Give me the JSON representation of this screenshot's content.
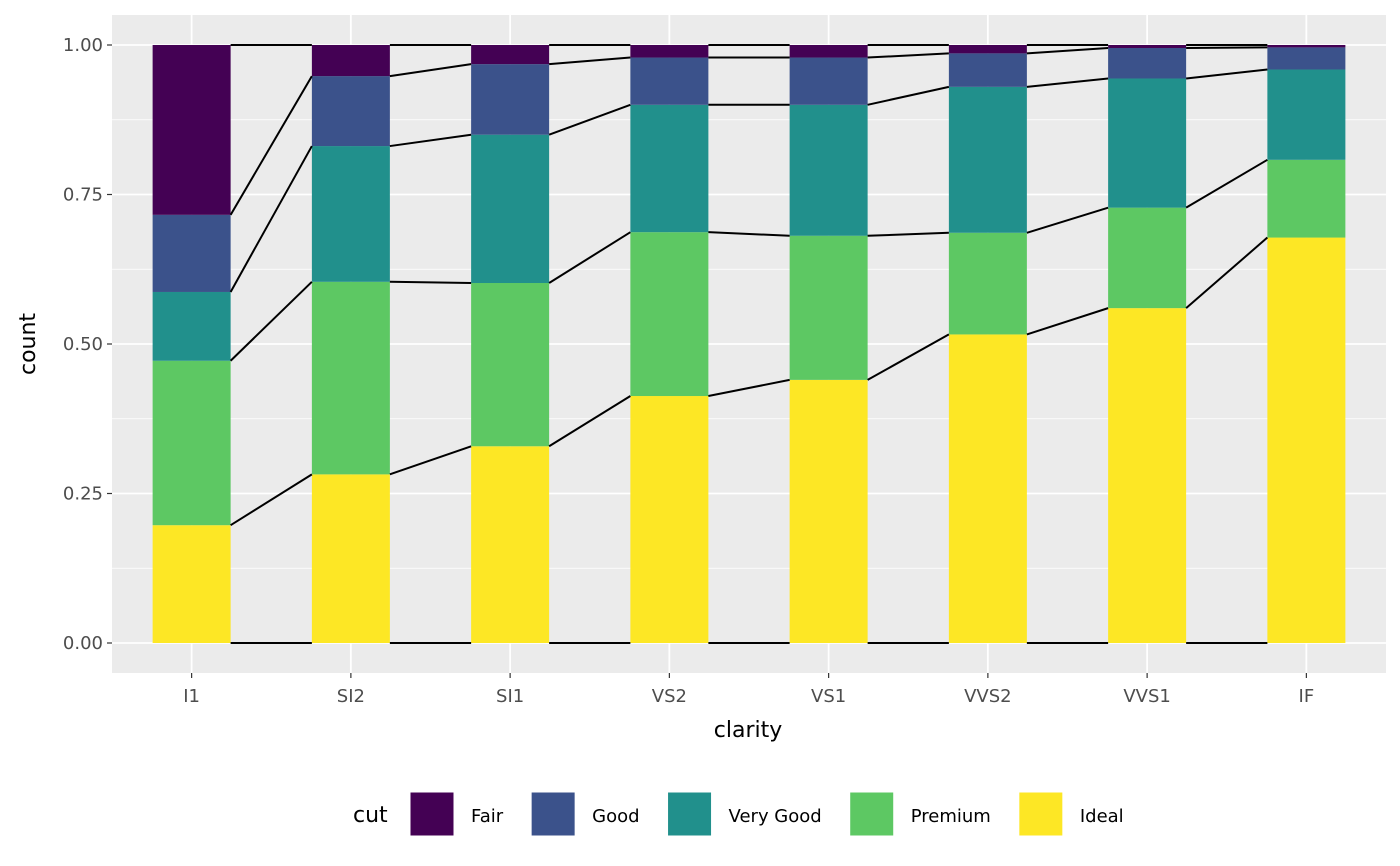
{
  "chart_data": {
    "type": "bar",
    "stacked": true,
    "position": "fill",
    "title": "",
    "xlabel": "clarity",
    "ylabel": "count",
    "ylim": [
      0,
      1
    ],
    "y_ticks": [
      "0.00",
      "0.25",
      "0.50",
      "0.75",
      "1.00"
    ],
    "categories": [
      "I1",
      "SI2",
      "SI1",
      "VS2",
      "VS1",
      "VVS2",
      "VVS1",
      "IF"
    ],
    "legend": {
      "title": "cut",
      "position": "bottom"
    },
    "grid": true,
    "connector_lines": true,
    "series": [
      {
        "name": "Fair",
        "color": "#440154",
        "values": [
          0.284,
          0.052,
          0.032,
          0.021,
          0.021,
          0.014,
          0.005,
          0.004
        ]
      },
      {
        "name": "Good",
        "color": "#3B528B",
        "values": [
          0.129,
          0.117,
          0.118,
          0.079,
          0.079,
          0.056,
          0.051,
          0.037
        ]
      },
      {
        "name": "Very Good",
        "color": "#21908C",
        "values": [
          0.115,
          0.227,
          0.248,
          0.213,
          0.219,
          0.244,
          0.216,
          0.151
        ]
      },
      {
        "name": "Premium",
        "color": "#5DC863",
        "values": [
          0.275,
          0.322,
          0.273,
          0.274,
          0.241,
          0.17,
          0.168,
          0.13
        ]
      },
      {
        "name": "Ideal",
        "color": "#FDE725",
        "values": [
          0.197,
          0.282,
          0.329,
          0.413,
          0.44,
          0.516,
          0.56,
          0.678
        ]
      }
    ]
  }
}
